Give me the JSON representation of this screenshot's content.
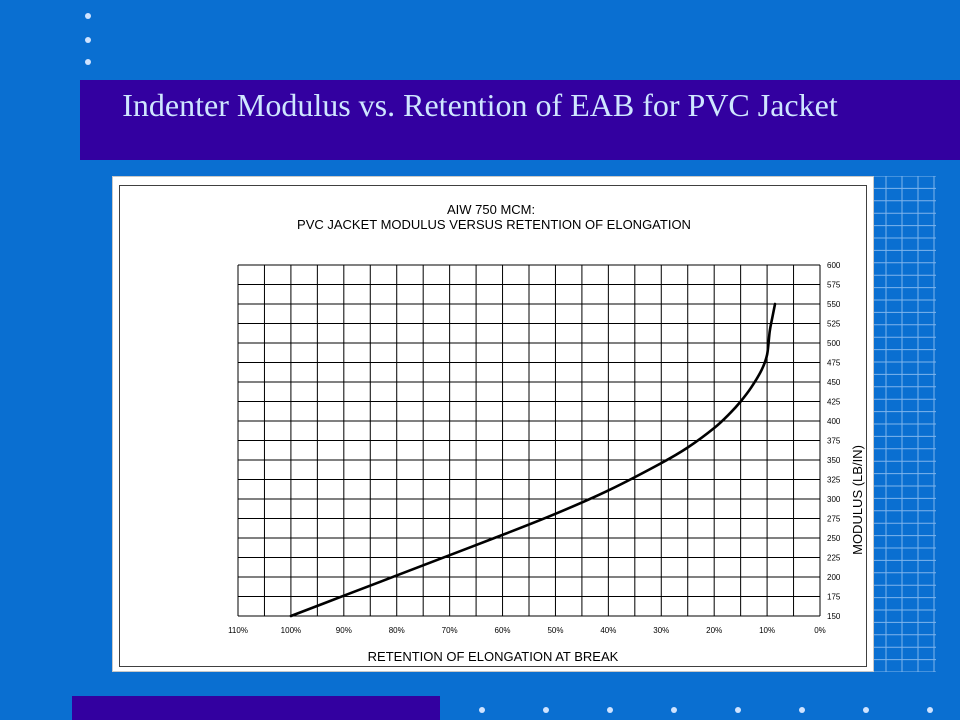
{
  "slide": {
    "title": "Indenter Modulus vs. Retention of EAB for PVC Jacket",
    "colors": {
      "background": "#0a6fd1",
      "band": "#3300a0",
      "title_text": "#cfe6ff"
    }
  },
  "chart_data": {
    "type": "line",
    "title": "AIW 750 MCM:",
    "subtitle": "PVC JACKET MODULUS VERSUS RETENTION OF ELONGATION",
    "xlabel": "RETENTION OF ELONGATION AT BREAK",
    "ylabel": "MODULUS (LB/IN)",
    "xlim": [
      110,
      0
    ],
    "x_reversed": true,
    "ylim": [
      150,
      600
    ],
    "y_axis_side": "right",
    "grid": true,
    "x_ticks": [
      "110%",
      "100%",
      "90%",
      "80%",
      "70%",
      "60%",
      "50%",
      "40%",
      "30%",
      "20%",
      "10%",
      "0%"
    ],
    "y_ticks": [
      "150",
      "175",
      "200",
      "225",
      "250",
      "275",
      "300",
      "325",
      "350",
      "375",
      "400",
      "425",
      "450",
      "475",
      "500",
      "525",
      "550",
      "575",
      "600"
    ],
    "series": [
      {
        "points": [
          [
            100,
            150
          ],
          [
            90,
            176
          ],
          [
            80,
            202
          ],
          [
            70,
            228
          ],
          [
            60,
            254
          ],
          [
            50,
            281
          ],
          [
            40,
            311
          ],
          [
            30,
            346
          ],
          [
            25,
            366
          ],
          [
            20,
            391
          ],
          [
            17,
            410
          ],
          [
            15,
            425
          ],
          [
            13,
            443
          ],
          [
            11,
            466
          ],
          [
            10,
            485
          ],
          [
            9.5,
            515
          ],
          [
            9,
            533
          ],
          [
            8.5,
            550
          ]
        ]
      }
    ]
  }
}
